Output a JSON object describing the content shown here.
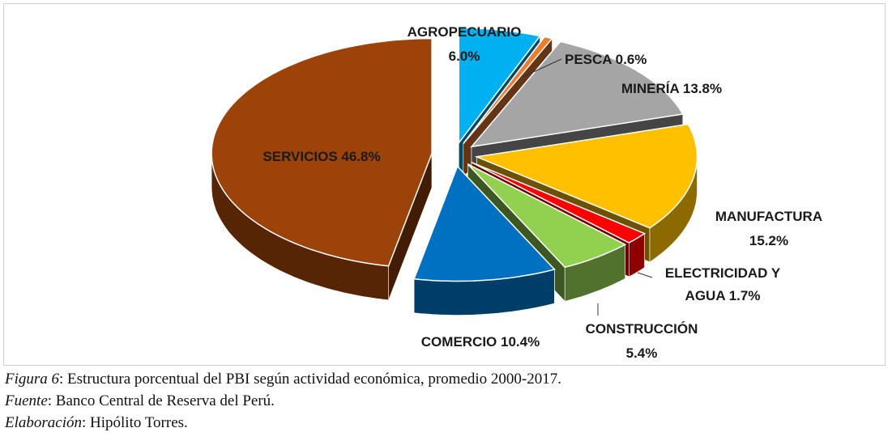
{
  "chart_data": {
    "type": "pie",
    "style": "3d-exploded",
    "slices": [
      {
        "name": "AGROPECUARIO",
        "value": 6.0,
        "color": "#00B0F0",
        "label": [
          "AGROPECUARIO",
          "6.0%"
        ]
      },
      {
        "name": "PESCA",
        "value": 0.6,
        "color": "#ED7D31",
        "label": [
          "PESCA 0.6%"
        ]
      },
      {
        "name": "MINERÍA",
        "value": 13.8,
        "color": "#A5A5A5",
        "label": [
          "MINERÍA 13.8%"
        ]
      },
      {
        "name": "MANUFACTURA",
        "value": 15.2,
        "color": "#FFC000",
        "label": [
          "MANUFACTURA",
          "15.2%"
        ]
      },
      {
        "name": "ELECTRICIDAD Y AGUA",
        "value": 1.7,
        "color": "#FF0000",
        "label": [
          "ELECTRICIDAD Y",
          "AGUA 1.7%"
        ]
      },
      {
        "name": "CONSTRUCCIÓN",
        "value": 5.4,
        "color": "#92D050",
        "label": [
          "CONSTRUCCIÓN",
          "5.4%"
        ]
      },
      {
        "name": "COMERCIO",
        "value": 10.4,
        "color": "#0070C0",
        "label": [
          "COMERCIO 10.4%"
        ]
      },
      {
        "name": "SERVICIOS",
        "value": 46.8,
        "color": "#9C4309",
        "label": [
          "SERVICIOS 46.8%"
        ]
      }
    ]
  },
  "caption": {
    "figure_lead": "Figura 6",
    "figure_text": ": Estructura porcentual del PBI según actividad económica, promedio 2000-2017.",
    "source_lead": "Fuente",
    "source_text": ": Banco Central de Reserva del Perú.",
    "author_lead": "Elaboración",
    "author_text": ": Hipólito Torres."
  }
}
